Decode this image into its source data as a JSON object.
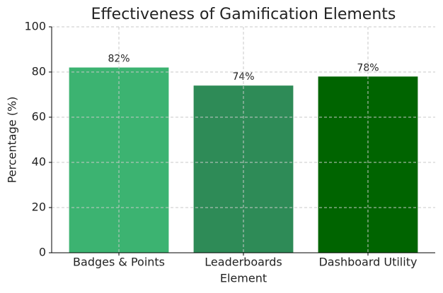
{
  "chart_data": {
    "type": "bar",
    "title": "Effectiveness of Gamification Elements",
    "x_label": "Element",
    "y_label": "Percentage (%)",
    "categories": [
      "Badges & Points",
      "Leaderboards",
      "Dashboard Utility"
    ],
    "values": [
      82,
      74,
      78
    ],
    "value_labels": [
      "82%",
      "74%",
      "78%"
    ],
    "colors": [
      "#3cb371",
      "#2e8b57",
      "#006400"
    ],
    "ylim": [
      0,
      100
    ],
    "yticks": [
      0,
      20,
      40,
      60,
      80,
      100
    ],
    "grid": true
  }
}
